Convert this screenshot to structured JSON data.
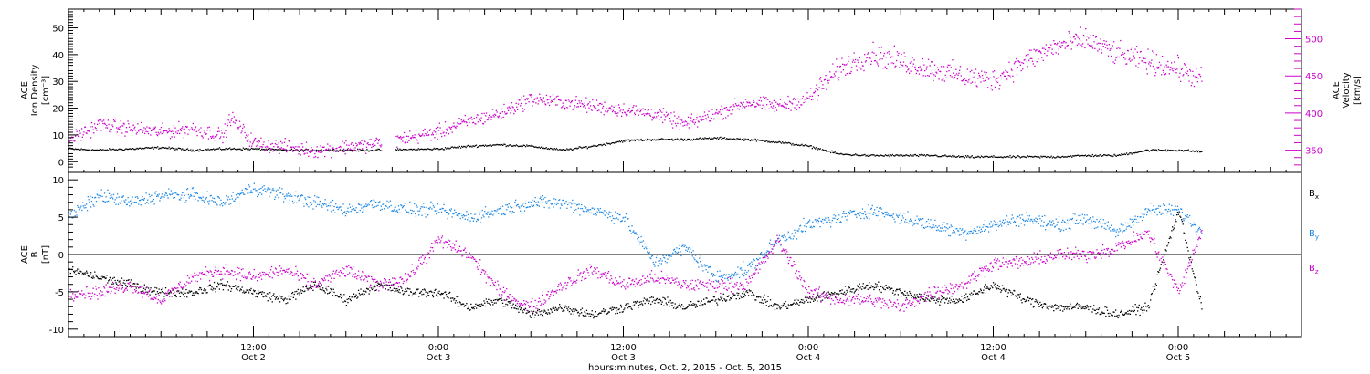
{
  "chart_data": [
    {
      "type": "scatter",
      "panel": "top",
      "ylabel_left": [
        "ACE",
        "Ion Density",
        "[cm⁻³]"
      ],
      "ylabel_right": [
        "ACE",
        "Velocity",
        "[km/s]"
      ],
      "yticks_left": [
        0,
        10,
        20,
        30,
        40,
        50
      ],
      "ylim_left": [
        -4,
        57
      ],
      "yticks_right": [
        350,
        400,
        450,
        500
      ],
      "ylim_right": [
        320,
        540
      ],
      "colors": {
        "density": "#000000",
        "velocity": "#cc00cc"
      },
      "series": [
        {
          "name": "Ion Density",
          "axis": "left",
          "x_hours": [
            0,
            2,
            4,
            6,
            8,
            10,
            12,
            14,
            16,
            18,
            20,
            24,
            26,
            28,
            30,
            32,
            34,
            36,
            38,
            40,
            42,
            44,
            46,
            48,
            50,
            52,
            54,
            56,
            58,
            60,
            62,
            64,
            66,
            68,
            70,
            72,
            73.5
          ],
          "values": [
            5,
            4.5,
            5,
            5.5,
            4.5,
            5,
            5,
            4.5,
            4.5,
            4.5,
            4.5,
            5,
            6,
            6.5,
            6,
            4.5,
            6,
            8,
            8.5,
            8.5,
            9,
            8.5,
            7.5,
            6,
            3,
            2.5,
            2.5,
            2.5,
            2,
            2,
            2,
            2,
            2.5,
            2.5,
            4.5,
            4.5,
            4
          ]
        },
        {
          "name": "Velocity",
          "axis": "right",
          "x_hours": [
            0,
            2,
            4,
            6,
            8,
            10,
            10.5,
            12,
            14,
            16,
            18,
            20,
            24,
            26,
            28,
            30,
            32,
            34,
            36,
            38,
            40,
            42,
            44,
            46,
            48,
            50,
            52,
            54,
            56,
            58,
            60,
            62,
            64,
            66,
            68,
            70,
            72,
            73.5
          ],
          "values": [
            365,
            385,
            380,
            375,
            380,
            370,
            395,
            360,
            355,
            350,
            355,
            360,
            375,
            390,
            400,
            420,
            415,
            410,
            405,
            400,
            385,
            400,
            415,
            410,
            420,
            460,
            480,
            470,
            460,
            450,
            445,
            470,
            490,
            500,
            480,
            470,
            460,
            445
          ]
        }
      ]
    },
    {
      "type": "scatter",
      "panel": "bottom",
      "ylabel": [
        "ACE",
        "B",
        "[nT]"
      ],
      "yticks": [
        -10,
        -5,
        0,
        5,
        10
      ],
      "ylim": [
        -11,
        11
      ],
      "zero_line": true,
      "legend": [
        {
          "label": "B",
          "sub": "x",
          "color": "#000000"
        },
        {
          "label": "B",
          "sub": "y",
          "color": "#1e88e5"
        },
        {
          "label": "B",
          "sub": "z",
          "color": "#cc00cc"
        }
      ],
      "series": [
        {
          "name": "Bx",
          "x_hours": [
            0,
            2,
            4,
            6,
            8,
            10,
            12,
            14,
            16,
            18,
            20,
            22,
            24,
            26,
            28,
            30,
            32,
            34,
            36,
            38,
            40,
            42,
            44,
            46,
            48,
            50,
            52,
            54,
            56,
            58,
            60,
            62,
            64,
            66,
            68,
            70,
            72,
            73.5
          ],
          "values": [
            -2,
            -3,
            -4,
            -5,
            -5,
            -4,
            -5,
            -6,
            -4,
            -6,
            -4,
            -5,
            -5,
            -7,
            -6,
            -8,
            -7,
            -8,
            -7,
            -6,
            -7,
            -6,
            -5,
            -7,
            -6,
            -5,
            -4,
            -5,
            -6,
            -6,
            -4,
            -6,
            -7,
            -7,
            -8,
            -7,
            6,
            -7
          ]
        },
        {
          "name": "By",
          "x_hours": [
            0,
            2,
            4,
            6,
            8,
            10,
            12,
            14,
            16,
            18,
            20,
            22,
            24,
            26,
            28,
            30,
            32,
            34,
            36,
            38,
            40,
            42,
            44,
            46,
            48,
            50,
            52,
            54,
            56,
            58,
            60,
            62,
            64,
            66,
            68,
            70,
            72,
            73.5
          ],
          "values": [
            5,
            8,
            7,
            8,
            8,
            7,
            9,
            8,
            7,
            6,
            7,
            6,
            6,
            5,
            6,
            7,
            7,
            6,
            5,
            -1,
            1,
            -3,
            -2,
            2,
            4,
            5,
            6,
            5,
            4,
            3,
            4,
            5,
            4,
            5,
            3,
            6,
            6,
            3
          ]
        },
        {
          "name": "Bz",
          "x_hours": [
            0,
            2,
            4,
            6,
            8,
            10,
            12,
            14,
            16,
            18,
            20,
            22,
            24,
            26,
            28,
            30,
            32,
            34,
            36,
            38,
            40,
            42,
            44,
            46,
            48,
            50,
            52,
            54,
            56,
            58,
            60,
            62,
            64,
            66,
            68,
            70,
            72,
            73.5
          ],
          "values": [
            -5,
            -5,
            -4,
            -6,
            -3,
            -2,
            -3,
            -2,
            -4,
            -2,
            -4,
            -3,
            2,
            0,
            -5,
            -7,
            -4,
            -2,
            -4,
            -3,
            -4,
            -4,
            -4,
            2,
            -5,
            -6,
            -6,
            -7,
            -5,
            -4,
            -1,
            -1,
            0,
            0,
            1,
            3,
            -5,
            3
          ]
        }
      ]
    }
  ],
  "xaxis": {
    "ticks": [
      {
        "hour": 12,
        "time": "12:00",
        "date": "Oct 2"
      },
      {
        "hour": 24,
        "time": "0:00",
        "date": "Oct 3"
      },
      {
        "hour": 36,
        "time": "12:00",
        "date": "Oct 3"
      },
      {
        "hour": 48,
        "time": "0:00",
        "date": "Oct 4"
      },
      {
        "hour": 60,
        "time": "12:00",
        "date": "Oct 4"
      },
      {
        "hour": 72,
        "time": "0:00",
        "date": "Oct 5"
      }
    ],
    "xlim_hours": [
      0,
      80
    ],
    "label": "hours:minutes, Oct.  2, 2015 - Oct.  5, 2015"
  }
}
